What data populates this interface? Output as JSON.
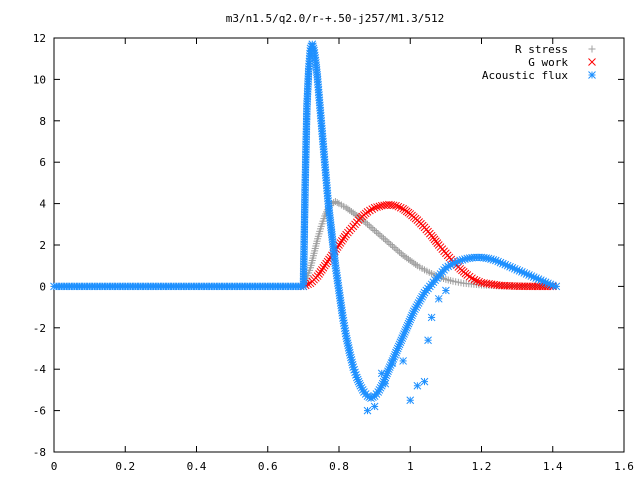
{
  "chart_data": {
    "type": "scatter",
    "title": "m3/n1.5/q2.0/r-+.50-j257/M1.3/512",
    "xlabel": "",
    "ylabel": "",
    "xlim": [
      0,
      1.6
    ],
    "ylim": [
      -8,
      12
    ],
    "xticks": [
      "0",
      "0.2",
      "0.4",
      "0.6",
      "0.8",
      "1",
      "1.2",
      "1.4",
      "1.6"
    ],
    "yticks": [
      "-8",
      "-6",
      "-4",
      "-2",
      "0",
      "2",
      "4",
      "6",
      "8",
      "10",
      "12"
    ],
    "legend_position": "top-right",
    "grid": false,
    "series": [
      {
        "name": "R stress",
        "marker": "plus",
        "color": "#a0a0a0",
        "x": [
          0.0,
          0.1,
          0.2,
          0.3,
          0.4,
          0.5,
          0.6,
          0.7,
          0.71,
          0.72,
          0.73,
          0.74,
          0.75,
          0.76,
          0.77,
          0.78,
          0.79,
          0.8,
          0.82,
          0.84,
          0.86,
          0.88,
          0.9,
          0.92,
          0.94,
          0.96,
          0.98,
          1.0,
          1.02,
          1.04,
          1.06,
          1.08,
          1.1,
          1.12,
          1.15,
          1.2,
          1.25,
          1.3,
          1.35,
          1.4,
          1.41
        ],
        "y": [
          0,
          0,
          0,
          0,
          0,
          0,
          0,
          0,
          0.4,
          0.9,
          1.6,
          2.3,
          2.9,
          3.4,
          3.8,
          4.0,
          4.1,
          4.0,
          3.8,
          3.55,
          3.3,
          3.0,
          2.7,
          2.4,
          2.1,
          1.8,
          1.5,
          1.25,
          1.0,
          0.8,
          0.62,
          0.46,
          0.34,
          0.25,
          0.15,
          0.07,
          0.03,
          0.01,
          0,
          0,
          0
        ]
      },
      {
        "name": "G work",
        "marker": "cross",
        "color": "#ff0000",
        "x": [
          0.7,
          0.72,
          0.74,
          0.76,
          0.78,
          0.8,
          0.82,
          0.84,
          0.86,
          0.88,
          0.9,
          0.92,
          0.94,
          0.96,
          0.98,
          1.0,
          1.02,
          1.04,
          1.06,
          1.08,
          1.1,
          1.12,
          1.14,
          1.16,
          1.18,
          1.2,
          1.25,
          1.3,
          1.35,
          1.4
        ],
        "y": [
          0,
          0.15,
          0.5,
          1.0,
          1.5,
          2.0,
          2.5,
          2.9,
          3.3,
          3.6,
          3.8,
          3.9,
          3.95,
          3.9,
          3.75,
          3.5,
          3.2,
          2.85,
          2.45,
          2.0,
          1.6,
          1.2,
          0.85,
          0.55,
          0.32,
          0.18,
          0.05,
          0.01,
          0,
          0
        ]
      },
      {
        "name": "Acoustic flux",
        "marker": "star",
        "color": "#1e90ff",
        "x": [
          0.0,
          0.05,
          0.1,
          0.15,
          0.2,
          0.25,
          0.3,
          0.35,
          0.4,
          0.45,
          0.5,
          0.55,
          0.6,
          0.65,
          0.7,
          0.705,
          0.71,
          0.715,
          0.72,
          0.725,
          0.73,
          0.735,
          0.74,
          0.745,
          0.75,
          0.755,
          0.76,
          0.765,
          0.77,
          0.78,
          0.79,
          0.8,
          0.81,
          0.82,
          0.83,
          0.84,
          0.85,
          0.86,
          0.87,
          0.88,
          0.89,
          0.9,
          0.91,
          0.92,
          0.93,
          0.94,
          0.95,
          0.96,
          0.97,
          0.98,
          0.99,
          1.0,
          1.01,
          1.02,
          1.03,
          1.04,
          1.05,
          1.06,
          1.07,
          1.08,
          1.09,
          1.1,
          1.12,
          1.14,
          1.16,
          1.18,
          1.2,
          1.22,
          1.24,
          1.26,
          1.28,
          1.3,
          1.32,
          1.34,
          1.36,
          1.38,
          1.4,
          1.41
        ],
        "y": [
          0,
          0,
          0,
          0,
          0,
          0,
          0,
          0,
          0,
          0,
          0,
          0,
          0,
          0,
          0,
          4.9,
          8.7,
          10.5,
          11.5,
          11.7,
          11.4,
          10.8,
          10.0,
          9.0,
          8.0,
          7.0,
          6.0,
          5.0,
          4.0,
          2.5,
          1.0,
          -0.2,
          -1.4,
          -2.4,
          -3.2,
          -3.9,
          -4.4,
          -4.8,
          -5.1,
          -5.3,
          -5.4,
          -5.3,
          -5.1,
          -4.8,
          -4.4,
          -4.0,
          -3.6,
          -3.2,
          -2.8,
          -2.4,
          -2.0,
          -1.6,
          -1.2,
          -0.9,
          -0.6,
          -0.3,
          -0.1,
          0.1,
          0.3,
          0.5,
          0.7,
          0.9,
          1.1,
          1.25,
          1.35,
          1.4,
          1.4,
          1.35,
          1.25,
          1.1,
          0.95,
          0.8,
          0.65,
          0.5,
          0.35,
          0.2,
          0.05,
          0
        ]
      },
      {
        "name": "",
        "marker": "star",
        "color": "#1e90ff",
        "x": [
          0.88,
          0.9,
          0.92,
          0.93,
          0.95,
          0.96,
          0.98,
          1.0,
          1.02,
          1.04,
          1.05,
          1.06,
          1.08,
          1.1
        ],
        "y": [
          -6.0,
          -5.8,
          -4.2,
          -4.7,
          -3.7,
          -3.2,
          -3.6,
          -5.5,
          -4.8,
          -4.6,
          -2.6,
          -1.5,
          -0.6,
          -0.2
        ]
      }
    ]
  }
}
